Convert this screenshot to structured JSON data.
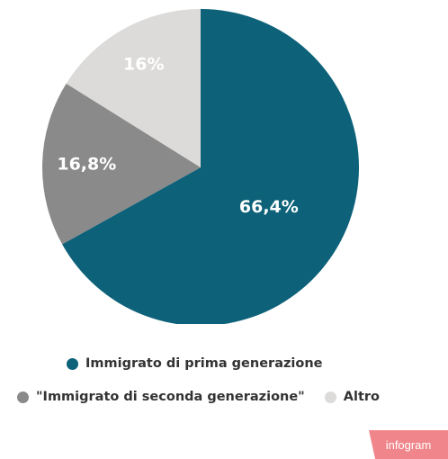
{
  "chart_data": {
    "type": "pie",
    "slices": [
      {
        "label": "Immigrato di prima generazione",
        "value": 66.4,
        "display": "66,4%",
        "color": "#0d6179",
        "label_color": "#ffffff"
      },
      {
        "label": "\"Immigrato di seconda generazione\"",
        "value": 16.8,
        "display": "16,8%",
        "color": "#8a8a8a",
        "label_color": "#ffffff"
      },
      {
        "label": "Altro",
        "value": 16,
        "display": "16%",
        "color": "#dcdbd9",
        "label_color": "#ffffff"
      }
    ],
    "legend_position": "bottom"
  },
  "branding": {
    "text": "infogram",
    "color": "#f0868b"
  }
}
